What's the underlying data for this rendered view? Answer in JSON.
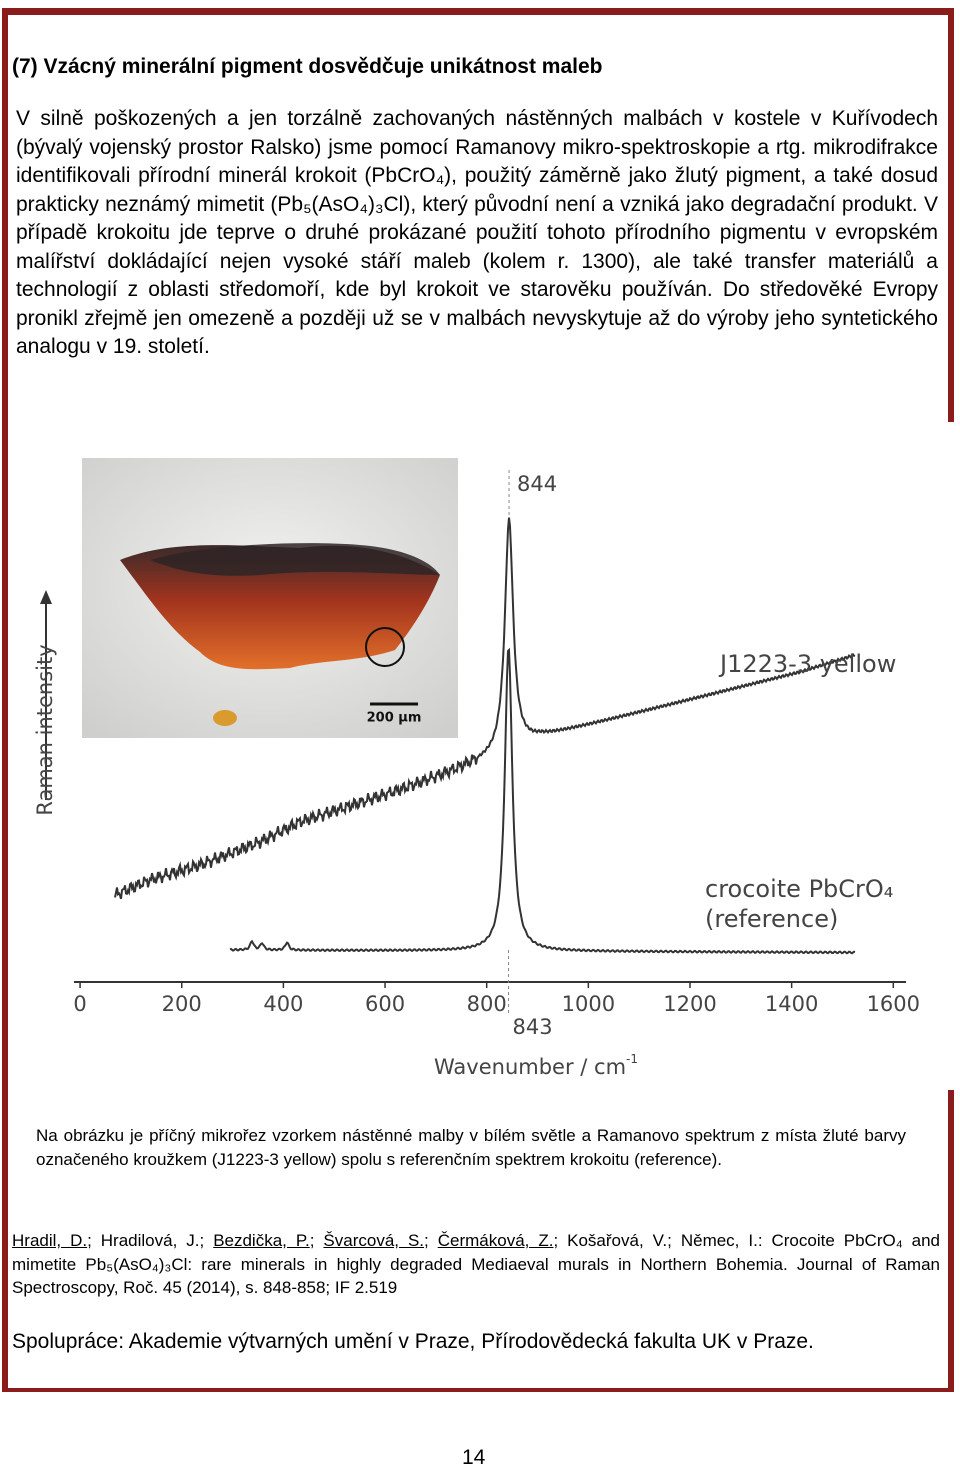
{
  "title": "(7) Vzácný minerální pigment dosvědčuje unikátnost maleb",
  "paragraph": "V silně poškozených a jen torzálně zachovaných nástěnných malbách v kostele v Kuřívodech (bývalý vojenský prostor Ralsko) jsme pomocí Ramanovy mikro-spektroskopie a rtg. mikrodifrakce identifikovali přírodní minerál krokoit (PbCrO₄), použitý záměrně jako žlutý pigment, a také dosud prakticky neznámý mimetit (Pb₅(AsO₄)₃Cl), který původní není a vzniká jako degradační produkt. V případě krokoitu jde teprve o druhé prokázané použití tohoto přírodního pigmentu v evropském malířství dokládající nejen vysoké stáří maleb (kolem r. 1300), ale také transfer materiálů a technologií z oblasti středomoří, kde byl krokoit ve starověku používán. Do středověké Evropy pronikl zřejmě jen omezeně a později už se v malbách nevyskytuje až do výroby jeho syntetického analogu v 19. století.",
  "figure": {
    "micrograph": {
      "scale_bar": "200 µm"
    },
    "spectrum": {
      "y_label": "Raman intensity",
      "x_label": "Wavenumber / cm",
      "x_label_exponent": "-1",
      "xlim": [
        -10,
        1625
      ],
      "xticks": [
        0,
        200,
        400,
        600,
        800,
        1000,
        1200,
        1400,
        1600
      ],
      "sample_peak": 844,
      "reference_peak": 843,
      "sample_label": "J1223-3 yellow",
      "reference_label": [
        "crocoite PbCrO₄",
        "(reference)"
      ]
    }
  },
  "caption": "Na obrázku je příčný mikrořez vzorkem nástěnné malby v bílém světle a Ramanovo spektrum z místa žluté barvy označeného kroužkem (J1223-3 yellow) spolu s referenčním spektrem krokoitu (reference).",
  "reference": [
    {
      "text": "Hradil, D.",
      "underlined": true
    },
    {
      "text": "; Hradilová, J.; ",
      "underlined": false
    },
    {
      "text": "Bezdička, P.",
      "underlined": true
    },
    {
      "text": "; ",
      "underlined": false
    },
    {
      "text": "Švarcová, S.",
      "underlined": true
    },
    {
      "text": "; ",
      "underlined": false
    },
    {
      "text": "Čermáková, Z.",
      "underlined": true
    },
    {
      "text": "; Košařová, V.; Němec, I.: Crocoite PbCrO₄ and mimetite Pb₅(AsO₄)₃Cl: rare minerals in highly degraded Mediaeval murals in Northern Bohemia. Journal of Raman Spectroscopy, Roč. 45 (2014), s. 848-858; IF 2.519",
      "underlined": false
    }
  ],
  "cooperation": "Spolupráce: Akademie výtvarných umění v Praze, Přírodovědecká fakulta UK v Praze.",
  "page_number": "14"
}
